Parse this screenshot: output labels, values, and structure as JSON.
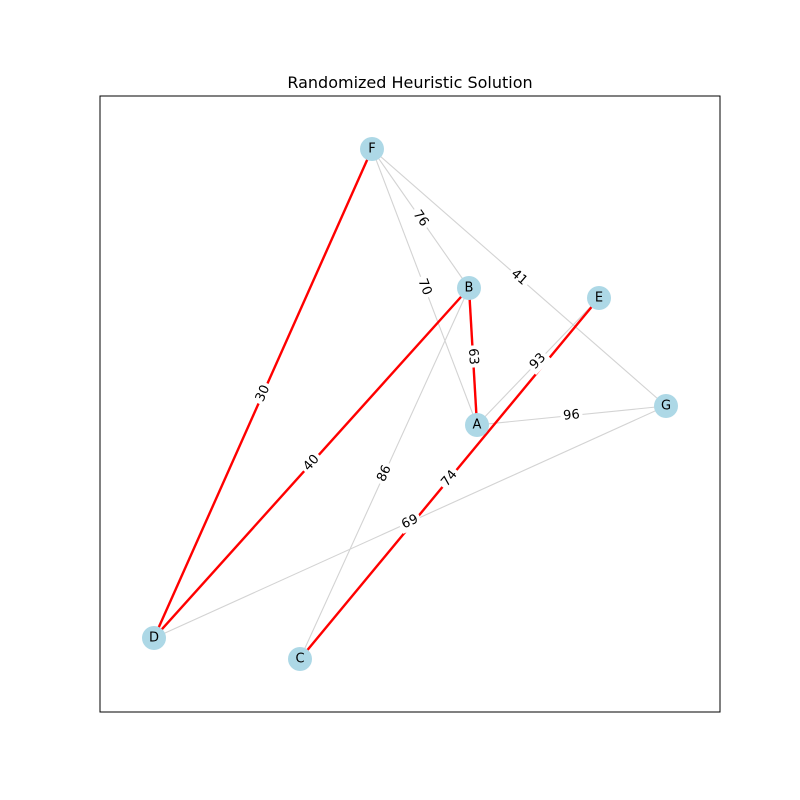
{
  "title": "Randomized Heuristic Solution",
  "colors": {
    "background": "#ffffff",
    "frame": "#000000",
    "node_fill": "#add8e6",
    "edge_default": "#d3d3d3",
    "edge_solution": "#ff0000"
  },
  "nodes": [
    {
      "id": "A",
      "label": "A"
    },
    {
      "id": "B",
      "label": "B"
    },
    {
      "id": "C",
      "label": "C"
    },
    {
      "id": "D",
      "label": "D"
    },
    {
      "id": "E",
      "label": "E"
    },
    {
      "id": "F",
      "label": "F"
    },
    {
      "id": "G",
      "label": "G"
    }
  ],
  "edges": [
    {
      "from": "F",
      "to": "B",
      "weight": "76",
      "solution": false
    },
    {
      "from": "F",
      "to": "A",
      "weight": "70",
      "solution": false
    },
    {
      "from": "F",
      "to": "G",
      "weight": "41",
      "solution": false
    },
    {
      "from": "A",
      "to": "E",
      "weight": "93",
      "solution": false
    },
    {
      "from": "A",
      "to": "G",
      "weight": "96",
      "solution": false
    },
    {
      "from": "B",
      "to": "C",
      "weight": "86",
      "solution": false
    },
    {
      "from": "D",
      "to": "G",
      "weight": "69",
      "solution": false
    },
    {
      "from": "F",
      "to": "D",
      "weight": "30",
      "solution": true
    },
    {
      "from": "B",
      "to": "D",
      "weight": "40",
      "solution": true
    },
    {
      "from": "B",
      "to": "A",
      "weight": "63",
      "solution": true
    },
    {
      "from": "E",
      "to": "C",
      "weight": "74",
      "solution": true
    }
  ]
}
